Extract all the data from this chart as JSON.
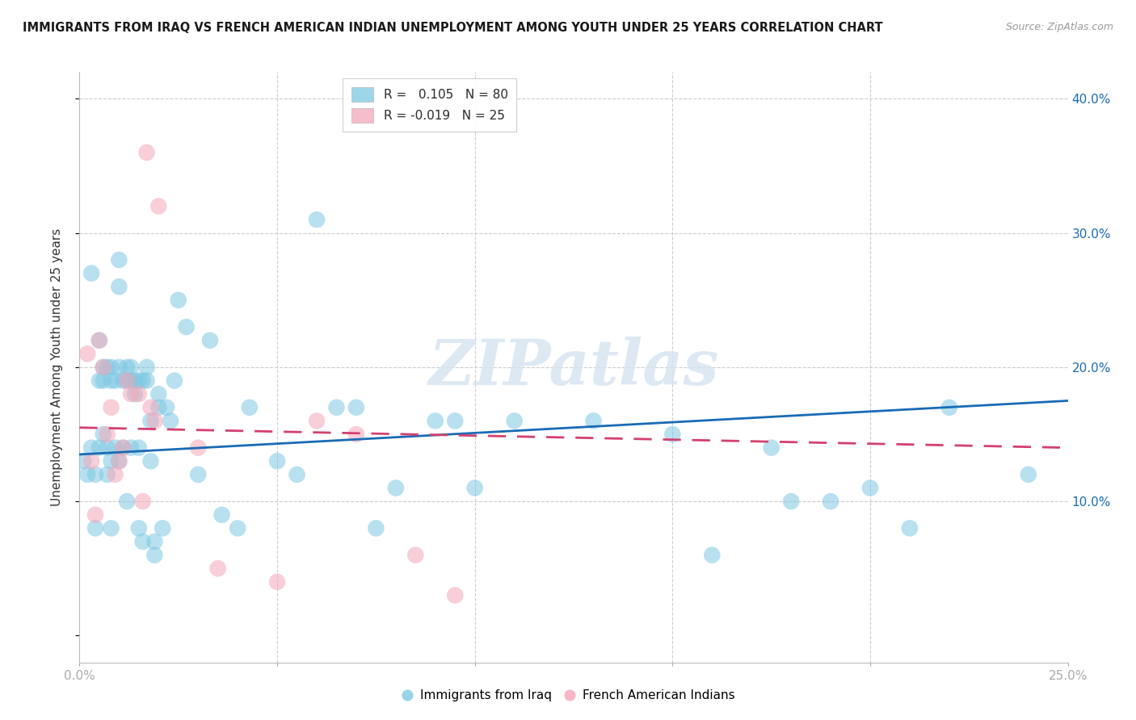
{
  "title": "IMMIGRANTS FROM IRAQ VS FRENCH AMERICAN INDIAN UNEMPLOYMENT AMONG YOUTH UNDER 25 YEARS CORRELATION CHART",
  "source": "Source: ZipAtlas.com",
  "ylabel": "Unemployment Among Youth under 25 years",
  "x_min": 0.0,
  "x_max": 0.25,
  "y_min": -0.02,
  "y_max": 0.42,
  "legend_blue_R": "0.105",
  "legend_blue_N": "80",
  "legend_pink_R": "-0.019",
  "legend_pink_N": "25",
  "blue_color": "#7ec8e3",
  "pink_color": "#f4a7b9",
  "trend_blue_color": "#1a6bb5",
  "trend_pink_color": "#d44070",
  "watermark_color": "#d5e3f0",
  "blue_trend_start_y": 0.135,
  "blue_trend_end_y": 0.175,
  "pink_trend_start_y": 0.155,
  "pink_trend_end_y": 0.14,
  "blue_scatter_x": [
    0.001,
    0.002,
    0.003,
    0.003,
    0.004,
    0.004,
    0.005,
    0.005,
    0.005,
    0.006,
    0.006,
    0.006,
    0.007,
    0.007,
    0.007,
    0.008,
    0.008,
    0.008,
    0.008,
    0.009,
    0.009,
    0.01,
    0.01,
    0.01,
    0.01,
    0.011,
    0.011,
    0.012,
    0.012,
    0.012,
    0.013,
    0.013,
    0.013,
    0.014,
    0.014,
    0.015,
    0.015,
    0.015,
    0.016,
    0.016,
    0.017,
    0.017,
    0.018,
    0.018,
    0.019,
    0.019,
    0.02,
    0.02,
    0.021,
    0.022,
    0.023,
    0.024,
    0.025,
    0.027,
    0.03,
    0.033,
    0.036,
    0.04,
    0.043,
    0.05,
    0.055,
    0.06,
    0.065,
    0.07,
    0.075,
    0.08,
    0.09,
    0.095,
    0.1,
    0.11,
    0.13,
    0.15,
    0.16,
    0.175,
    0.18,
    0.19,
    0.2,
    0.21,
    0.22,
    0.24
  ],
  "blue_scatter_y": [
    0.13,
    0.12,
    0.27,
    0.14,
    0.12,
    0.08,
    0.19,
    0.14,
    0.22,
    0.2,
    0.19,
    0.15,
    0.2,
    0.14,
    0.12,
    0.19,
    0.2,
    0.13,
    0.08,
    0.19,
    0.14,
    0.28,
    0.26,
    0.2,
    0.13,
    0.19,
    0.14,
    0.2,
    0.19,
    0.1,
    0.2,
    0.19,
    0.14,
    0.19,
    0.18,
    0.19,
    0.08,
    0.14,
    0.07,
    0.19,
    0.19,
    0.2,
    0.16,
    0.13,
    0.06,
    0.07,
    0.18,
    0.17,
    0.08,
    0.17,
    0.16,
    0.19,
    0.25,
    0.23,
    0.12,
    0.22,
    0.09,
    0.08,
    0.17,
    0.13,
    0.12,
    0.31,
    0.17,
    0.17,
    0.08,
    0.11,
    0.16,
    0.16,
    0.11,
    0.16,
    0.16,
    0.15,
    0.06,
    0.14,
    0.1,
    0.1,
    0.11,
    0.08,
    0.17,
    0.12
  ],
  "pink_scatter_x": [
    0.002,
    0.003,
    0.004,
    0.005,
    0.006,
    0.007,
    0.008,
    0.009,
    0.01,
    0.011,
    0.012,
    0.013,
    0.015,
    0.016,
    0.017,
    0.018,
    0.019,
    0.02,
    0.03,
    0.035,
    0.05,
    0.06,
    0.07,
    0.085,
    0.095
  ],
  "pink_scatter_y": [
    0.21,
    0.13,
    0.09,
    0.22,
    0.2,
    0.15,
    0.17,
    0.12,
    0.13,
    0.14,
    0.19,
    0.18,
    0.18,
    0.1,
    0.36,
    0.17,
    0.16,
    0.32,
    0.14,
    0.05,
    0.04,
    0.16,
    0.15,
    0.06,
    0.03
  ]
}
